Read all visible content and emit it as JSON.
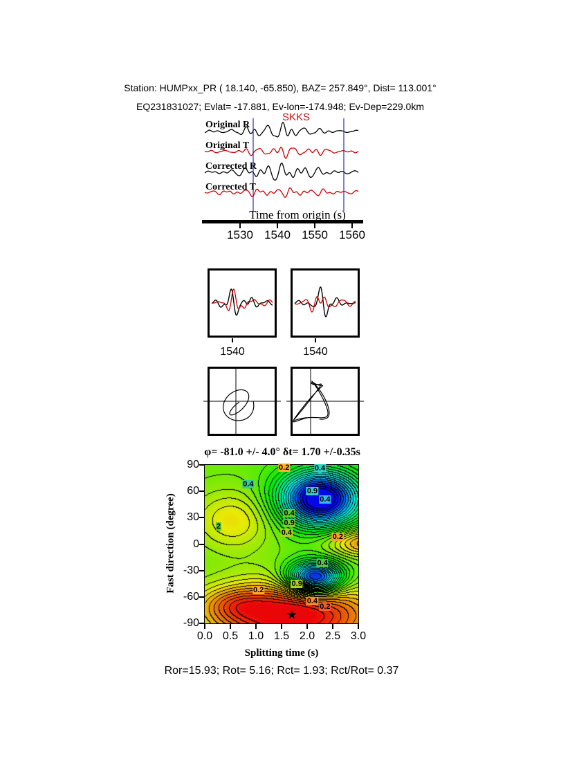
{
  "header": {
    "line1": "Station: HUMPxx_PR ( 18.140, -65.850), BAZ= 257.849°, Dist= 113.001°",
    "line2": "EQ231831027; Evlat= -17.881, Ev-lon=-174.948; Ev-Dep=229.0km"
  },
  "waveform_panel": {
    "phase_label": "SKKS",
    "phase_color": "#cc1111",
    "traces": [
      {
        "label": "Original R",
        "color": "#000000"
      },
      {
        "label": "Original T",
        "color": "#cc0000"
      },
      {
        "label": "Corrected R",
        "color": "#000000"
      },
      {
        "label": "Corrected T",
        "color": "#cc0000"
      }
    ],
    "window_color": "#2233bb",
    "axis_label": "Time from origin (s)",
    "ticks": [
      "1530",
      "1540",
      "1550",
      "1560"
    ]
  },
  "pair_panels": {
    "colors": [
      "#000000",
      "#cc0000"
    ],
    "tick_labels": [
      "1540",
      "1540"
    ]
  },
  "chart_data": {
    "type": "heatmap",
    "title": "φ= -81.0 +/- 4.0° δt= 1.70 +/-0.35s",
    "xlabel": "Splitting time (s)",
    "ylabel": "Fast direction (degree)",
    "xlim": [
      0.0,
      3.0
    ],
    "ylim": [
      -90,
      90
    ],
    "x_ticks": [
      "0.0",
      "0.5",
      "1.0",
      "1.5",
      "2.0",
      "2.5",
      "3.0"
    ],
    "y_ticks": [
      "90",
      "60",
      "30",
      "0",
      "-30",
      "-60",
      "-90"
    ],
    "grid": false,
    "colormap": "rainbow (red = minimum energy, blue = maximum energy)",
    "best_fit": {
      "phi_deg": -81.0,
      "phi_err_deg": 4.0,
      "dt_s": 1.7,
      "dt_err_s": 0.35
    },
    "star": {
      "dt": 1.7,
      "phi": -81,
      "glyph": "★"
    },
    "contour_labels": [
      {
        "text": "0.2",
        "dt": 1.55,
        "phi": 87,
        "bg": "#ffb020"
      },
      {
        "text": "0.4",
        "dt": 2.25,
        "phi": 86,
        "bg": "#30d5c8"
      },
      {
        "text": "0.4",
        "dt": 0.85,
        "phi": 68,
        "bg": "#33cc99"
      },
      {
        "text": "0.9",
        "dt": 2.1,
        "phi": 60,
        "bg": "#30cfd0"
      },
      {
        "text": "0.4",
        "dt": 2.35,
        "phi": 51,
        "bg": "#3ab6f0"
      },
      {
        "text": "0.4",
        "dt": 1.65,
        "phi": 35,
        "bg": "#66cc33"
      },
      {
        "text": "0.9",
        "dt": 1.65,
        "phi": 24,
        "bg": "#7ccc2e"
      },
      {
        "text": "0.4",
        "dt": 1.6,
        "phi": 13,
        "bg": "#a8d020"
      },
      {
        "text": "0.2",
        "dt": 2.6,
        "phi": 8,
        "bg": "#ffa028"
      },
      {
        "text": "2",
        "dt": 0.27,
        "phi": 20,
        "bg": "#58c840"
      },
      {
        "text": "0.4",
        "dt": 2.3,
        "phi": -22,
        "bg": "#4ec84e"
      },
      {
        "text": "0.9",
        "dt": 1.8,
        "phi": -45,
        "bg": "#b0d01e"
      },
      {
        "text": "0.2",
        "dt": 1.05,
        "phi": -52,
        "bg": "#ffaa28"
      },
      {
        "text": "0.4",
        "dt": 2.1,
        "phi": -65,
        "bg": "#ff8828"
      },
      {
        "text": "0.2",
        "dt": 2.35,
        "phi": -71,
        "bg": "#ff5828"
      }
    ]
  },
  "footer": {
    "text": "Ror=15.93; Rot= 5.16; Rct= 1.93; Rct/Rot= 0.37"
  }
}
